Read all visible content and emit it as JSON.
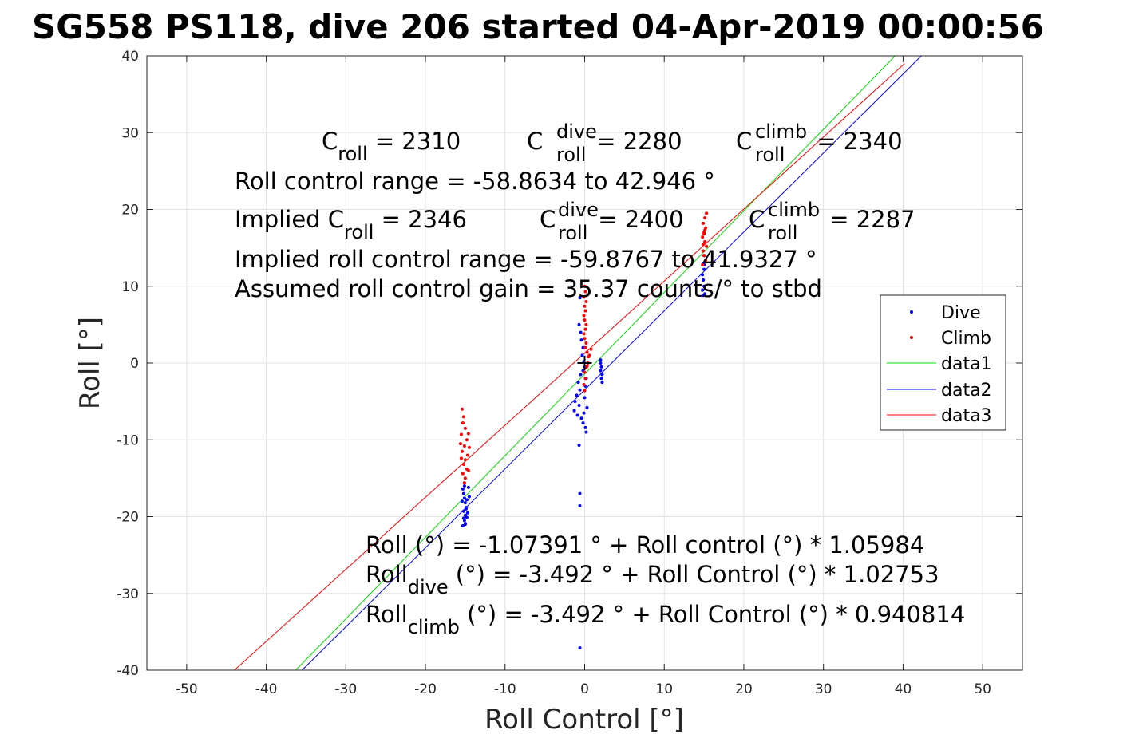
{
  "chart_data": {
    "type": "scatter",
    "title": "SG558 PS118, dive 206 started 04-Apr-2019 00:00:56",
    "xlabel": "Roll Control [°]",
    "ylabel": "Roll [°]",
    "xlim": [
      -55,
      55
    ],
    "ylim": [
      -40,
      40
    ],
    "xticks": [
      -50,
      -40,
      -30,
      -20,
      -10,
      0,
      10,
      20,
      30,
      40,
      50
    ],
    "yticks": [
      -40,
      -30,
      -20,
      -10,
      0,
      10,
      20,
      30,
      40
    ],
    "grid": true,
    "legend_position": "right",
    "legend": [
      "Dive",
      "Climb",
      "data1",
      "data2",
      "data3"
    ],
    "colors": {
      "dive": "#0000ff",
      "climb": "#ff0000",
      "data1": "#00dd00",
      "data2": "#0000ff",
      "data3": "#ff0000"
    },
    "dive_points": [
      [
        -15.3,
        -16.4
      ],
      [
        -15.2,
        -17.0
      ],
      [
        -15.1,
        -17.6
      ],
      [
        -15.0,
        -18.2
      ],
      [
        -14.9,
        -18.8
      ],
      [
        -15.2,
        -19.3
      ],
      [
        -15.0,
        -19.8
      ],
      [
        -14.8,
        -20.1
      ],
      [
        -15.1,
        -20.5
      ],
      [
        -15.0,
        -20.9
      ],
      [
        -15.3,
        -21.2
      ],
      [
        -14.9,
        -19.0
      ],
      [
        -15.1,
        -16.0
      ],
      [
        -14.6,
        -16.2
      ],
      [
        -14.5,
        -17.4
      ],
      [
        -15.4,
        -18.0
      ],
      [
        -14.7,
        -19.5
      ],
      [
        -15.2,
        -20.2
      ],
      [
        -14.8,
        -17.8
      ],
      [
        -15.0,
        -21.0
      ],
      [
        -0.6,
        8.5
      ],
      [
        -0.7,
        5.0
      ],
      [
        -0.5,
        4.0
      ],
      [
        -0.4,
        3.0
      ],
      [
        -0.2,
        2.0
      ],
      [
        -0.3,
        1.0
      ],
      [
        -0.1,
        0.2
      ],
      [
        0.0,
        -0.5
      ],
      [
        -0.2,
        -1.0
      ],
      [
        -0.5,
        -1.5
      ],
      [
        -0.8,
        -2.5
      ],
      [
        -0.6,
        -3.5
      ],
      [
        -1.0,
        -4.2
      ],
      [
        -1.2,
        -5.0
      ],
      [
        -0.7,
        -5.5
      ],
      [
        -1.3,
        -6.2
      ],
      [
        -0.9,
        -6.8
      ],
      [
        -0.4,
        -7.2
      ],
      [
        -0.2,
        -7.8
      ],
      [
        0.1,
        -8.4
      ],
      [
        0.2,
        -9.0
      ],
      [
        0.0,
        -4.5
      ],
      [
        0.3,
        -5.8
      ],
      [
        -0.1,
        -6.5
      ],
      [
        0.1,
        -3.0
      ],
      [
        0.2,
        -2.0
      ],
      [
        -0.7,
        -10.7
      ],
      [
        -0.6,
        -17.0
      ],
      [
        -0.6,
        -18.6
      ],
      [
        -0.6,
        -37.1
      ],
      [
        2.0,
        0.0
      ],
      [
        2.1,
        -0.5
      ],
      [
        2.0,
        -1.0
      ],
      [
        2.2,
        -1.5
      ],
      [
        2.1,
        -2.0
      ],
      [
        2.2,
        -2.5
      ],
      [
        2.0,
        0.4
      ],
      [
        15.0,
        14.0
      ],
      [
        14.9,
        13.0
      ],
      [
        15.0,
        12.2
      ],
      [
        14.8,
        11.5
      ],
      [
        14.9,
        10.8
      ],
      [
        15.0,
        10.0
      ],
      [
        14.8,
        9.5
      ],
      [
        15.1,
        9.0
      ],
      [
        14.9,
        8.8
      ],
      [
        15.0,
        12.8
      ]
    ],
    "climb_points": [
      [
        -15.4,
        -6.0
      ],
      [
        -15.2,
        -7.0
      ],
      [
        -15.3,
        -7.8
      ],
      [
        -15.0,
        -8.5
      ],
      [
        -15.5,
        -9.3
      ],
      [
        -14.8,
        -10.0
      ],
      [
        -15.1,
        -10.8
      ],
      [
        -15.4,
        -11.5
      ],
      [
        -14.7,
        -12.0
      ],
      [
        -15.0,
        -12.6
      ],
      [
        -15.2,
        -13.2
      ],
      [
        -14.8,
        -13.8
      ],
      [
        -15.3,
        -14.4
      ],
      [
        -15.0,
        -15.0
      ],
      [
        -15.1,
        -15.6
      ],
      [
        -14.6,
        -9.2
      ],
      [
        -14.5,
        -11.0
      ],
      [
        -15.6,
        -10.5
      ],
      [
        -15.5,
        -12.4
      ],
      [
        -14.6,
        -14.0
      ],
      [
        0.0,
        10.0
      ],
      [
        0.1,
        9.3
      ],
      [
        -0.1,
        8.6
      ],
      [
        0.2,
        8.0
      ],
      [
        0.0,
        7.4
      ],
      [
        0.1,
        6.8
      ],
      [
        -0.1,
        6.2
      ],
      [
        0.0,
        5.6
      ],
      [
        0.2,
        5.0
      ],
      [
        0.1,
        4.4
      ],
      [
        -0.1,
        3.8
      ],
      [
        0.0,
        3.2
      ],
      [
        0.2,
        2.6
      ],
      [
        0.1,
        2.0
      ],
      [
        0.3,
        1.4
      ],
      [
        0.5,
        0.8
      ],
      [
        0.4,
        0.0
      ],
      [
        0.2,
        -0.6
      ],
      [
        0.0,
        -1.2
      ],
      [
        0.1,
        -2.0
      ],
      [
        -0.1,
        -2.8
      ],
      [
        0.0,
        -3.6
      ],
      [
        0.6,
        1.0
      ],
      [
        0.8,
        1.8
      ],
      [
        0.3,
        -0.4
      ],
      [
        15.3,
        19.5
      ],
      [
        15.1,
        18.9
      ],
      [
        14.9,
        18.2
      ],
      [
        15.2,
        17.6
      ],
      [
        15.0,
        17.0
      ],
      [
        14.8,
        16.4
      ],
      [
        15.1,
        15.8
      ],
      [
        15.3,
        15.2
      ],
      [
        14.9,
        14.6
      ],
      [
        15.0,
        14.0
      ],
      [
        15.2,
        13.4
      ],
      [
        14.8,
        12.8
      ],
      [
        15.0,
        16.8
      ],
      [
        15.1,
        17.3
      ],
      [
        14.9,
        15.5
      ]
    ],
    "lines": [
      {
        "name": "data1",
        "x": [
          -36.3,
          39.0
        ],
        "y": [
          -40.0,
          40.0
        ]
      },
      {
        "name": "data2",
        "x": [
          -35.5,
          42.3
        ],
        "y": [
          -40.0,
          40.0
        ]
      },
      {
        "name": "data3",
        "x": [
          -44.0,
          40.2
        ],
        "y": [
          -40.0,
          39.0
        ]
      }
    ],
    "marker": {
      "x": 0.0,
      "y": 0.0,
      "symbol": "+"
    },
    "annotations": {
      "c_roll": {
        "base": "C",
        "sub": "roll",
        "rest": " = 2310"
      },
      "c_roll_dive": {
        "base": "C",
        "sup": "dive",
        "sub": "roll",
        "rest": " = 2280"
      },
      "c_roll_climb": {
        "base": "C",
        "sup": "climb",
        "sub": "roll",
        "rest": " = 2340"
      },
      "range_line": "Roll control range = -58.8634 to 42.946 °",
      "implied_c_roll": {
        "base": "Implied C",
        "sub": "roll",
        "rest": " = 2346"
      },
      "implied_c_roll_dive": {
        "base": "C",
        "sup": "dive",
        "sub": "roll",
        "rest": " = 2400"
      },
      "implied_c_roll_climb": {
        "base": "C",
        "sup": "climb",
        "sub": "roll",
        "rest": " = 2287"
      },
      "implied_range_line": "Implied roll control range = -59.8767 to 41.9327 °",
      "gain_line": "Assumed roll control gain = 35.37 counts/° to stbd",
      "fit_line": "Roll (°) = -1.07391 ° + Roll control (°) * 1.05984",
      "fit_dive": {
        "base": "Roll",
        "sub": "dive",
        "rest": " (°) = -3.492 ° + Roll Control (°) * 1.02753"
      },
      "fit_climb": {
        "base": "Roll",
        "sub": "climb",
        "rest": " (°) = -3.492 ° + Roll Control (°) * 0.940814"
      }
    }
  }
}
